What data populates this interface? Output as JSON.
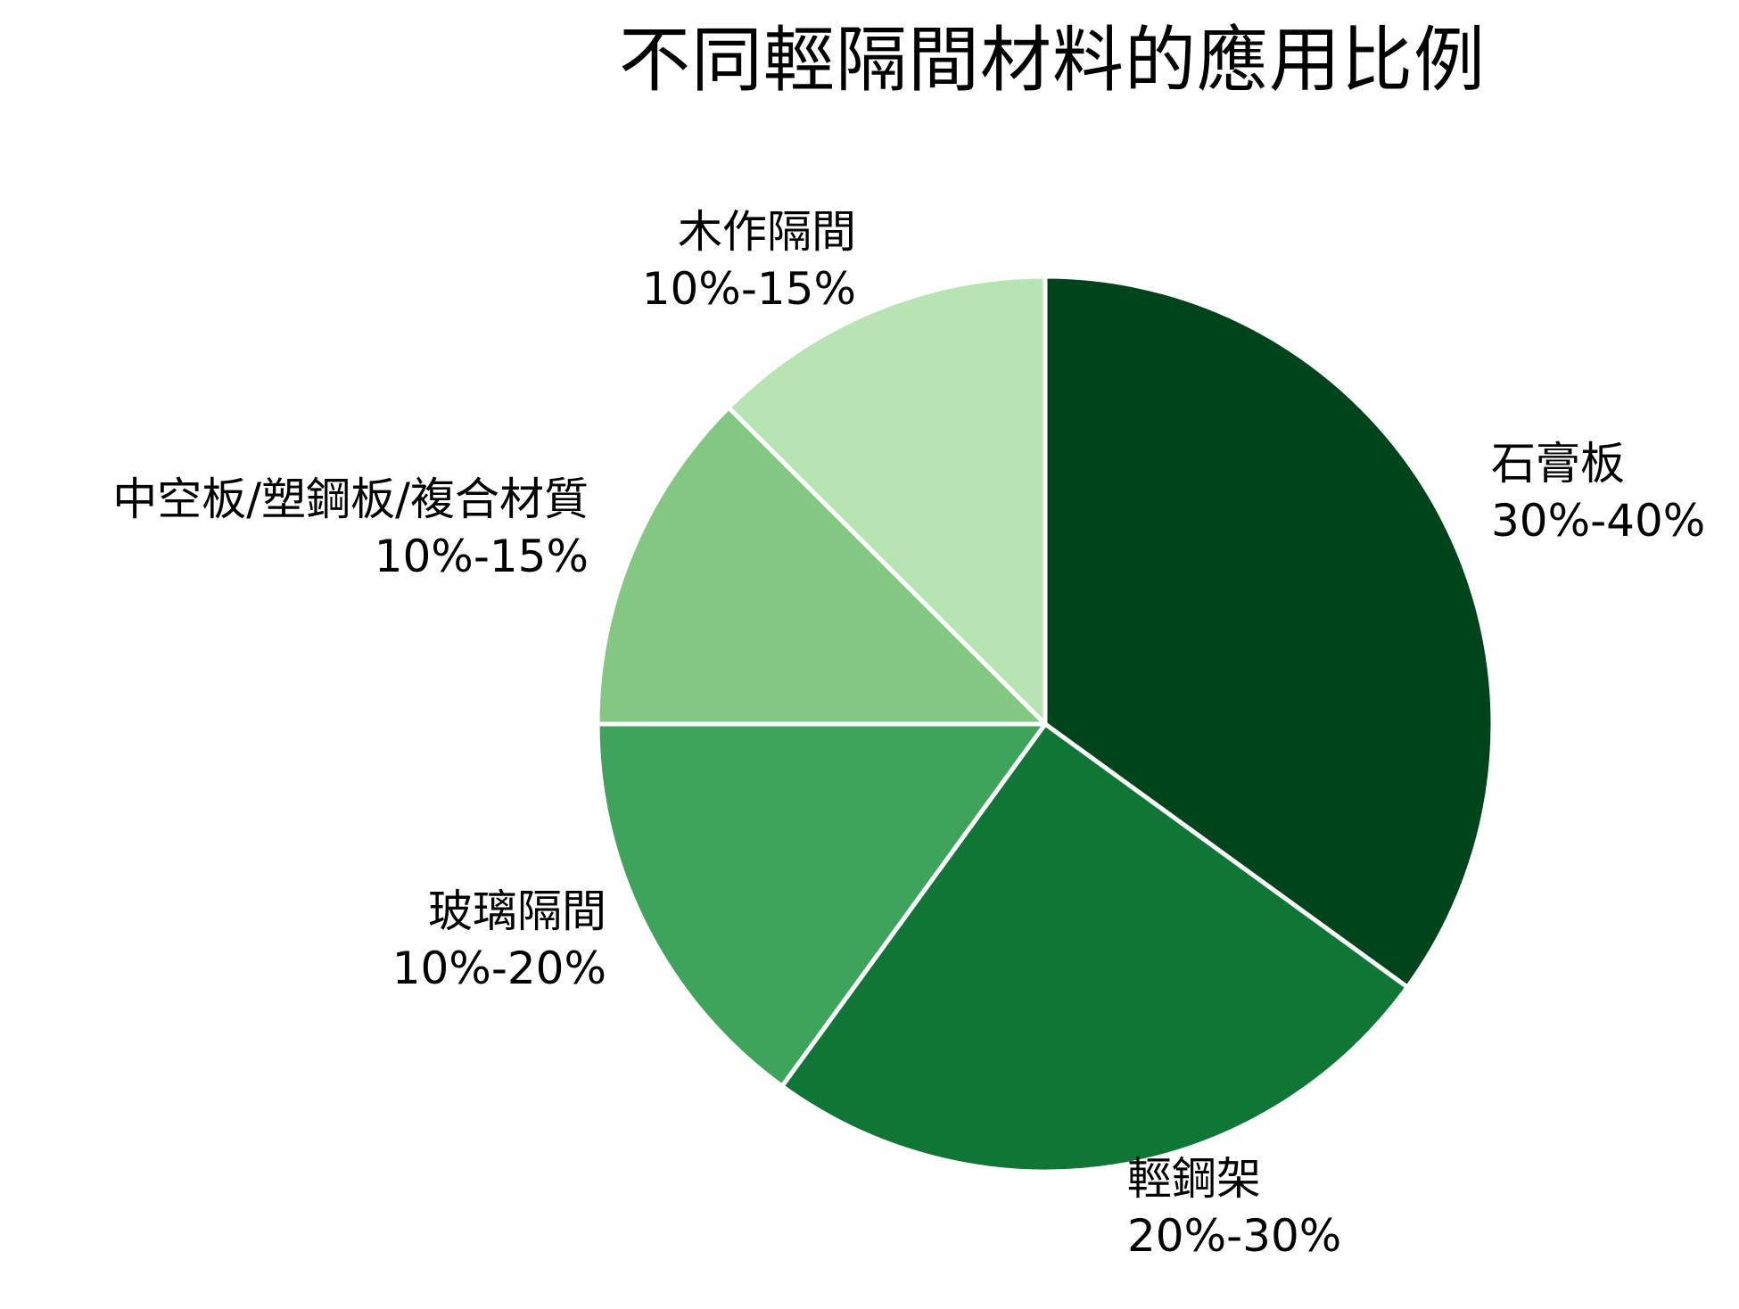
{
  "chart_data": {
    "type": "pie",
    "title": "不同輕隔間材料的應用比例",
    "start_angle_deg": 0,
    "direction": "clockwise",
    "center": [
      1172,
      812
    ],
    "radius": 502,
    "slice_border_color": "#ffffff",
    "slices": [
      {
        "label": "石膏板",
        "range_text": "30%-40%",
        "value": 35,
        "color": "#00441b"
      },
      {
        "label": "輕鋼架",
        "range_text": "20%-30%",
        "value": 25,
        "color": "#0f7635"
      },
      {
        "label": "玻璃隔間",
        "range_text": "10%-20%",
        "value": 15,
        "color": "#3fa45b"
      },
      {
        "label": "中空板/塑鋼板/複合材質",
        "range_text": "10%-15%",
        "value": 12.5,
        "color": "#82c882"
      },
      {
        "label": "木作隔間",
        "range_text": "10%-15%",
        "value": 12.5,
        "color": "#b8e3b2"
      }
    ],
    "legend": "none",
    "labels_position": "outside"
  }
}
